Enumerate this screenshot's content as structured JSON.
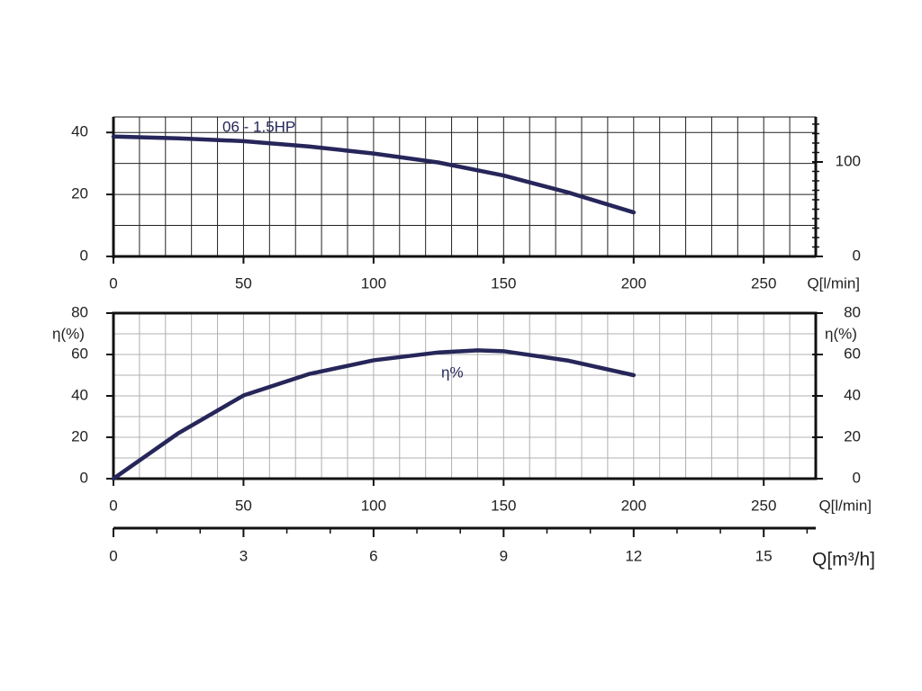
{
  "chart_data": [
    {
      "type": "line",
      "annotation": "06 - 1.5HP",
      "x_label": "Q[l/min]",
      "x": [
        0,
        25,
        50,
        75,
        100,
        125,
        150,
        175,
        200
      ],
      "values": [
        38.7,
        38.1,
        37.2,
        35.5,
        33.2,
        30.3,
        26.1,
        20.6,
        14.2
      ],
      "color": "#26265a",
      "xlim": [
        0,
        270
      ],
      "xticks": [
        0,
        50,
        100,
        150,
        200,
        250
      ],
      "ylim": [
        0,
        45
      ],
      "yticks": [
        0,
        20,
        40
      ],
      "y2lim": [
        0,
        147.6
      ],
      "y2ticks": [
        0,
        100
      ],
      "y2minor": [
        10,
        20,
        30,
        40,
        50,
        60,
        70,
        80,
        90,
        110,
        120,
        130,
        140
      ],
      "xgrid": [
        10,
        20,
        30,
        40,
        50,
        60,
        70,
        80,
        90,
        100,
        110,
        120,
        130,
        140,
        150,
        160,
        170,
        180,
        190,
        200,
        210,
        220,
        230,
        240,
        250,
        260
      ],
      "ygrid": [
        10,
        20,
        30,
        40
      ],
      "grid_color": "#222222"
    },
    {
      "type": "line",
      "annotation": "η%",
      "x_label": "Q[l/min]",
      "y_label": "η(%)",
      "y2_label": "η(%)",
      "x": [
        0,
        25,
        50,
        75,
        100,
        125,
        140,
        150,
        175,
        200
      ],
      "values": [
        0,
        22,
        40.2,
        50.5,
        57.2,
        61,
        62,
        61.6,
        57,
        50
      ],
      "color": "#26265a",
      "xlim": [
        0,
        270
      ],
      "xticks": [
        0,
        50,
        100,
        150,
        200,
        250
      ],
      "ylim": [
        0,
        80
      ],
      "yticks": [
        0,
        20,
        40,
        60,
        80
      ],
      "y2lim": [
        0,
        80
      ],
      "y2ticks": [
        0,
        20,
        40,
        60,
        80
      ],
      "xgrid": [
        10,
        20,
        30,
        40,
        50,
        60,
        70,
        80,
        90,
        100,
        110,
        120,
        130,
        140,
        150,
        160,
        170,
        180,
        190,
        200,
        210,
        220,
        230,
        240,
        250,
        260
      ],
      "ygrid": [
        10,
        20,
        30,
        40,
        50,
        60,
        70
      ],
      "grid_color": "#b0b0b0"
    },
    {
      "type": "axis",
      "x_label": "Q[m³/h]",
      "xlim": [
        0,
        16.2
      ],
      "xticks": [
        0,
        3,
        6,
        9,
        12,
        15
      ],
      "xminor": [
        1,
        2,
        4,
        5,
        7,
        8,
        10,
        11,
        13,
        14,
        16
      ]
    }
  ]
}
